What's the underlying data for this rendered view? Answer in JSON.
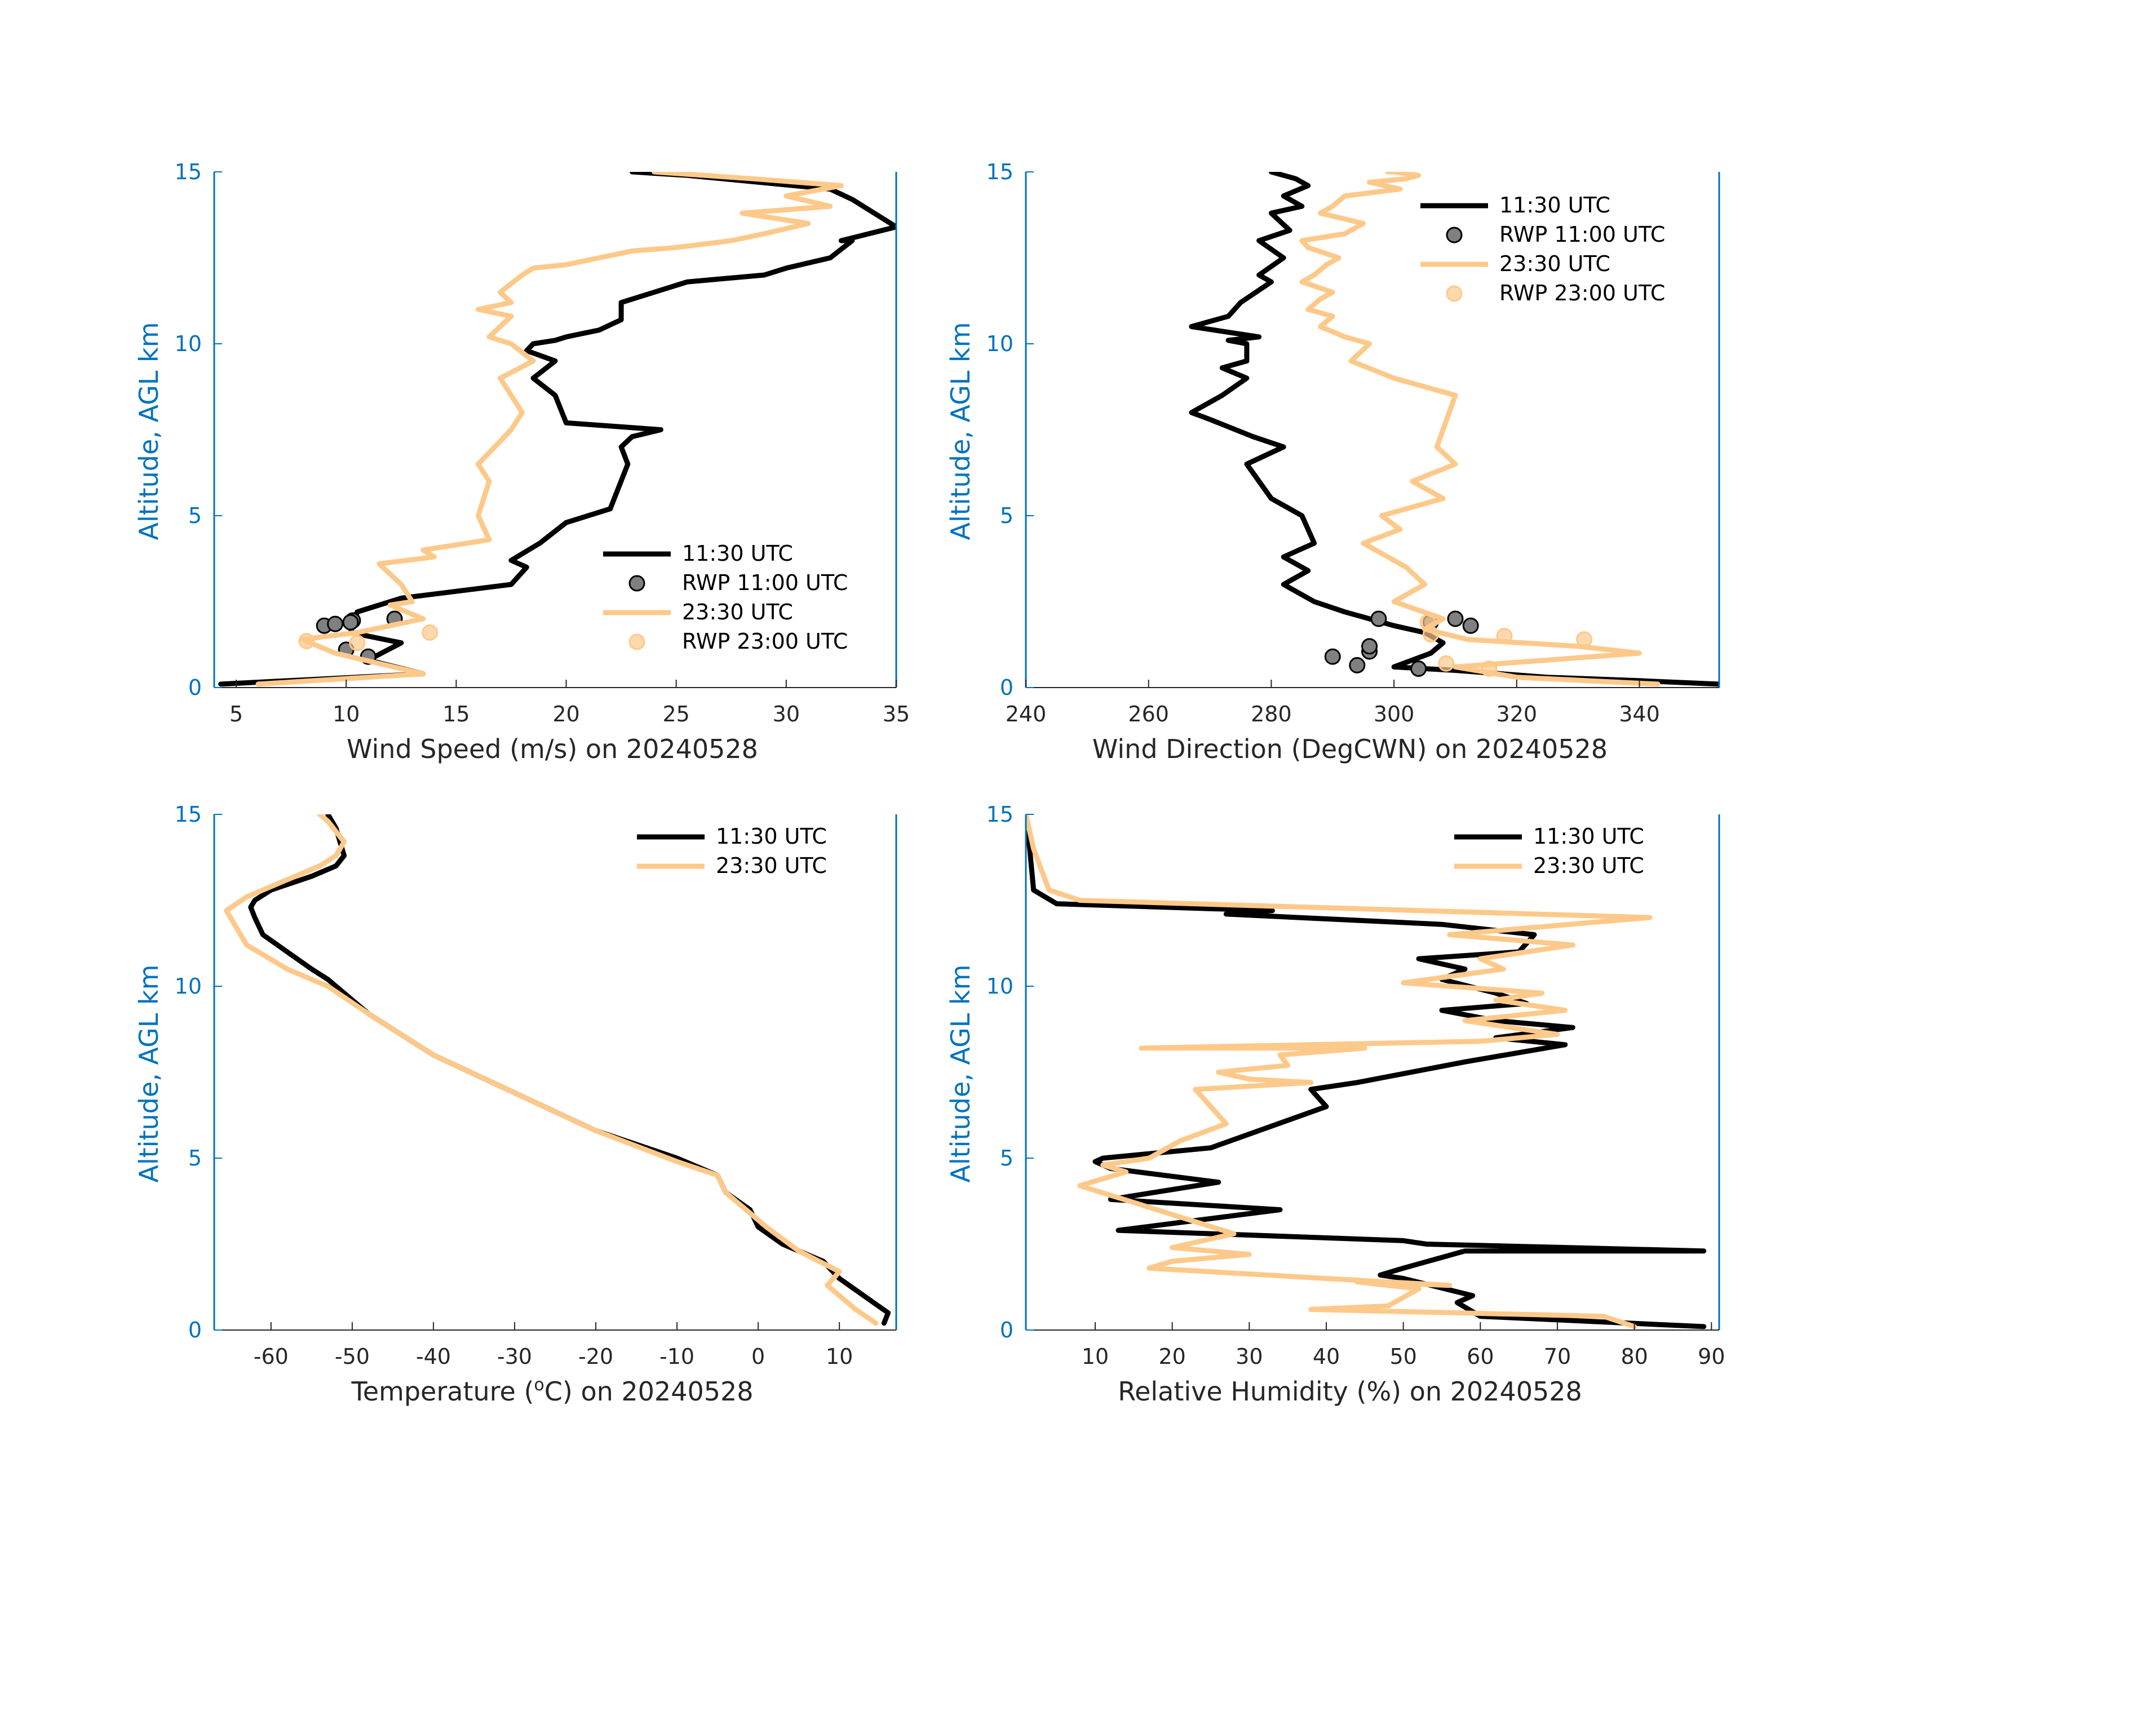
{
  "colors": {
    "series_1130": "#000000",
    "series_2330": "#FDC98A",
    "axis": "#0072BD",
    "tick_text": "#262626"
  },
  "chart_data": [
    {
      "id": "wind-speed",
      "type": "line",
      "xlabel": "Wind Speed (m/s) on 20240528",
      "ylabel": "Altitude, AGL km",
      "xlim": [
        4,
        35
      ],
      "ylim": [
        0,
        15
      ],
      "xticks": [
        5,
        10,
        15,
        20,
        25,
        30,
        35
      ],
      "xtick_labels": [
        "5",
        "10",
        "15",
        "20",
        "25",
        "30",
        "35"
      ],
      "yticks": [
        0,
        5,
        10,
        15
      ],
      "ytick_labels": [
        "0",
        "5",
        "10",
        "15"
      ],
      "legend_position": "lower-right",
      "legend": [
        "11:30 UTC",
        "RWP 11:00 UTC",
        "23:30 UTC",
        "RWP 23:00 UTC"
      ],
      "series": [
        {
          "name": "11:30 UTC",
          "kind": "line",
          "x": [
            4.3,
            13.5,
            11,
            12.5,
            10.2,
            10.5,
            12.5,
            17.5,
            18.2,
            17.5,
            18.8,
            20,
            22,
            22.8,
            22.5,
            23,
            24.3,
            20,
            19.5,
            18.5,
            19.5,
            18.2,
            18.5,
            19.5,
            20,
            21.5,
            22.5,
            22.5,
            24,
            25.5,
            29,
            30,
            32,
            33,
            32.5,
            35,
            34,
            33,
            32,
            25.5,
            23
          ],
          "y": [
            0.1,
            0.4,
            0.8,
            1.3,
            1.6,
            2.2,
            2.6,
            3,
            3.5,
            3.7,
            4.2,
            4.8,
            5.2,
            6.5,
            7,
            7.3,
            7.5,
            7.7,
            8.5,
            9,
            9.5,
            9.8,
            10,
            10.1,
            10.2,
            10.4,
            10.7,
            11.2,
            11.5,
            11.8,
            12,
            12.2,
            12.5,
            13,
            13,
            13.4,
            13.8,
            14.2,
            14.5,
            14.9,
            15
          ]
        },
        {
          "name": "RWP 11:00 UTC",
          "kind": "points",
          "x": [
            9,
            9.5,
            10.3,
            10.2,
            10,
            11,
            12.2
          ],
          "y": [
            1.8,
            1.85,
            1.95,
            1.9,
            1.1,
            0.9,
            2.0
          ]
        },
        {
          "name": "23:30 UTC",
          "kind": "line",
          "x": [
            6,
            13.5,
            9.5,
            8,
            10.5,
            13.5,
            12,
            13,
            12.5,
            11.5,
            14,
            13.5,
            16.5,
            16,
            16.5,
            16,
            17.5,
            18,
            17.5,
            17,
            18.5,
            17.5,
            16.5,
            17.5,
            16,
            17.5,
            17,
            18,
            18.5,
            20,
            21.5,
            23,
            25,
            27.5,
            29,
            31,
            28,
            32,
            30,
            32.5,
            28.5,
            24
          ],
          "y": [
            0.1,
            0.4,
            1.0,
            1.4,
            1.6,
            2.0,
            2.4,
            2.5,
            3.0,
            3.6,
            3.8,
            4.0,
            4.3,
            5.0,
            6.0,
            6.5,
            7.5,
            8.0,
            8.5,
            9.0,
            9.5,
            10.0,
            10.2,
            10.8,
            11.0,
            11.2,
            11.5,
            12.0,
            12.2,
            12.3,
            12.5,
            12.7,
            12.8,
            13.0,
            13.2,
            13.5,
            13.8,
            14.0,
            14.3,
            14.6,
            14.8,
            15.0
          ]
        },
        {
          "name": "RWP 23:00 UTC",
          "kind": "points",
          "x": [
            8.2,
            13.8,
            10.5
          ],
          "y": [
            1.35,
            1.6,
            1.3
          ]
        }
      ]
    },
    {
      "id": "wind-direction",
      "type": "line",
      "xlabel": "Wind Direction (DegCWN) on 20240528",
      "ylabel": "Altitude, AGL km",
      "xlim": [
        240,
        353
      ],
      "ylim": [
        0,
        15
      ],
      "xticks": [
        240,
        260,
        280,
        300,
        320,
        340
      ],
      "xtick_labels": [
        "240",
        "260",
        "280",
        "300",
        "320",
        "340"
      ],
      "yticks": [
        0,
        5,
        10,
        15
      ],
      "ytick_labels": [
        "0",
        "5",
        "10",
        "15"
      ],
      "legend_position": "top-right",
      "legend": [
        "11:30 UTC",
        "RWP 11:00 UTC",
        "23:30 UTC",
        "RWP 23:00 UTC"
      ],
      "series": [
        {
          "name": "11:30 UTC",
          "kind": "line",
          "x": [
            353,
            340,
            325,
            310,
            300,
            306,
            308,
            305,
            300,
            296,
            292,
            287,
            282,
            286,
            282,
            287,
            285,
            280,
            276,
            282,
            277,
            270,
            267,
            272,
            276,
            272,
            276,
            276,
            273,
            278,
            267,
            273,
            275,
            280,
            278,
            282,
            278,
            283,
            280,
            285,
            282,
            286,
            284,
            280
          ],
          "y": [
            0.1,
            0.2,
            0.3,
            0.5,
            0.6,
            1.0,
            1.3,
            1.6,
            1.8,
            2.0,
            2.2,
            2.5,
            3.0,
            3.4,
            3.8,
            4.2,
            5.0,
            5.5,
            6.5,
            7.0,
            7.3,
            7.8,
            8.0,
            8.5,
            9.0,
            9.3,
            9.5,
            10.0,
            10.1,
            10.2,
            10.5,
            10.8,
            11.2,
            11.8,
            12.0,
            12.5,
            13.0,
            13.3,
            13.8,
            14.0,
            14.3,
            14.6,
            14.8,
            15.0
          ]
        },
        {
          "name": "RWP 11:00 UTC",
          "kind": "points",
          "x": [
            290,
            294,
            296,
            296,
            297.5,
            304,
            306,
            310,
            312.5
          ],
          "y": [
            0.9,
            0.65,
            1.05,
            1.2,
            2.0,
            0.55,
            1.9,
            2.0,
            1.8
          ]
        },
        {
          "name": "23:30 UTC",
          "kind": "line",
          "x": [
            343,
            320,
            310,
            325,
            340,
            330,
            312,
            305,
            308,
            300,
            305,
            302,
            295,
            301,
            298,
            308,
            303,
            310,
            307,
            310,
            300,
            293,
            296,
            292,
            288,
            290,
            286,
            288,
            290,
            285,
            287,
            289,
            291,
            286,
            285,
            292,
            295,
            288,
            290,
            292,
            301,
            296,
            302,
            304,
            300,
            299
          ],
          "y": [
            0.1,
            0.3,
            0.6,
            0.8,
            1.0,
            1.2,
            1.4,
            1.7,
            2.0,
            2.5,
            3.0,
            3.5,
            4.2,
            4.6,
            5.0,
            5.5,
            6.0,
            6.5,
            7.0,
            8.5,
            9.0,
            9.5,
            10.0,
            10.2,
            10.5,
            10.8,
            11.0,
            11.3,
            11.5,
            11.8,
            12.0,
            12.3,
            12.5,
            12.8,
            13.0,
            13.2,
            13.5,
            13.8,
            14.0,
            14.3,
            14.5,
            14.7,
            14.8,
            14.9,
            15.0,
            15.0
          ]
        },
        {
          "name": "RWP 23:00 UTC",
          "kind": "points",
          "x": [
            308.5,
            315.5,
            331,
            318,
            306,
            305.5
          ],
          "y": [
            0.7,
            0.55,
            1.4,
            1.5,
            1.55,
            1.9
          ]
        }
      ]
    },
    {
      "id": "temperature",
      "type": "line",
      "xlabel_prefix": "Temperature (",
      "xlabel_sup": "o",
      "xlabel_suffix": "C) on 20240528",
      "ylabel": "Altitude, AGL km",
      "xlim": [
        -67,
        17
      ],
      "ylim": [
        0,
        15
      ],
      "xticks": [
        -60,
        -50,
        -40,
        -30,
        -20,
        -10,
        0,
        10
      ],
      "xtick_labels": [
        "-60",
        "-50",
        "-40",
        "-30",
        "-20",
        "-10",
        "0",
        "10"
      ],
      "yticks": [
        0,
        5,
        10,
        15
      ],
      "ytick_labels": [
        "0",
        "5",
        "10",
        "15"
      ],
      "legend_position": "top-right",
      "legend": [
        "11:30 UTC",
        "23:30 UTC"
      ],
      "series": [
        {
          "name": "11:30 UTC",
          "kind": "line",
          "x": [
            15.5,
            16,
            13,
            10,
            8,
            3,
            0,
            -1,
            -4,
            -5,
            -10,
            -20,
            -30,
            -40,
            -48,
            -52,
            -53,
            -55,
            -58,
            -61,
            -62,
            -62.5,
            -62,
            -60,
            -55,
            -52,
            -51,
            -51.5,
            -52,
            -53
          ],
          "y": [
            0.2,
            0.5,
            1.0,
            1.5,
            2.0,
            2.5,
            3.0,
            3.5,
            4.0,
            4.5,
            5.0,
            5.8,
            6.9,
            8.0,
            9.2,
            10.0,
            10.2,
            10.5,
            11.0,
            11.5,
            12.0,
            12.3,
            12.5,
            12.8,
            13.2,
            13.5,
            13.8,
            14.2,
            14.6,
            15.0
          ]
        },
        {
          "name": "23:30 UTC",
          "kind": "line",
          "x": [
            14.5,
            12,
            10,
            8.5,
            10,
            5,
            1,
            -1,
            -4,
            -5,
            -10,
            -20,
            -30,
            -40,
            -48,
            -53,
            -58,
            -63,
            -65.5,
            -63,
            -60,
            -57,
            -54,
            -52,
            -51,
            -52,
            -53,
            -54
          ],
          "y": [
            0.2,
            0.6,
            1.0,
            1.3,
            1.7,
            2.3,
            3.0,
            3.4,
            4.0,
            4.5,
            4.9,
            5.8,
            6.9,
            8.0,
            9.2,
            10.0,
            10.5,
            11.2,
            12.2,
            12.6,
            12.9,
            13.2,
            13.5,
            13.8,
            14.2,
            14.5,
            14.8,
            15.0
          ]
        }
      ]
    },
    {
      "id": "relative-humidity",
      "type": "line",
      "xlabel": "Relative Humidity (%) on 20240528",
      "ylabel": "Altitude, AGL km",
      "xlim": [
        1,
        91
      ],
      "ylim": [
        0,
        15
      ],
      "xticks": [
        10,
        20,
        30,
        40,
        50,
        60,
        70,
        80,
        90
      ],
      "xtick_labels": [
        "10",
        "20",
        "30",
        "40",
        "50",
        "60",
        "70",
        "80",
        "90"
      ],
      "yticks": [
        0,
        5,
        10,
        15
      ],
      "ytick_labels": [
        "0",
        "5",
        "10",
        "15"
      ],
      "legend_position": "top-right",
      "legend": [
        "11:30 UTC",
        "23:30 UTC"
      ],
      "series": [
        {
          "name": "11:30 UTC",
          "kind": "line",
          "x": [
            89,
            60,
            57,
            59,
            50,
            47,
            50,
            58,
            89,
            53,
            50,
            13,
            34,
            12,
            26,
            12,
            10,
            11,
            25,
            40,
            38,
            44,
            58,
            71,
            62,
            72,
            62,
            55,
            66,
            62,
            55,
            58,
            52,
            65,
            67,
            55,
            27,
            33,
            5,
            2,
            1.5,
            1
          ],
          "y": [
            0.1,
            0.4,
            0.8,
            1.0,
            1.5,
            1.6,
            1.8,
            2.3,
            2.3,
            2.5,
            2.6,
            2.9,
            3.5,
            3.8,
            4.3,
            4.7,
            4.9,
            5.0,
            5.3,
            6.5,
            7.0,
            7.2,
            7.8,
            8.3,
            8.5,
            8.8,
            9.0,
            9.3,
            9.5,
            9.8,
            10.2,
            10.5,
            10.8,
            11.0,
            11.5,
            11.8,
            12.1,
            12.2,
            12.4,
            12.8,
            14.0,
            15.0
          ]
        },
        {
          "name": "23:30 UTC",
          "kind": "line",
          "x": [
            80,
            76,
            38,
            48,
            52,
            44,
            56,
            40,
            17,
            20,
            30,
            20,
            28,
            18,
            8,
            14,
            11,
            17,
            21,
            27,
            23,
            38,
            30,
            26,
            35,
            34,
            45,
            16,
            60,
            70,
            58,
            71,
            62,
            68,
            50,
            63,
            60,
            72,
            56,
            82,
            8,
            4,
            2,
            1
          ],
          "y": [
            0.1,
            0.4,
            0.6,
            0.7,
            1.2,
            1.4,
            1.3,
            1.5,
            1.8,
            2.0,
            2.2,
            2.4,
            2.8,
            3.5,
            4.2,
            4.6,
            4.8,
            5.0,
            5.5,
            6.0,
            7.0,
            7.2,
            7.3,
            7.5,
            7.7,
            8.0,
            8.2,
            8.2,
            8.4,
            8.6,
            9.0,
            9.3,
            9.6,
            9.8,
            10.1,
            10.5,
            10.8,
            11.2,
            11.5,
            12.0,
            12.5,
            12.8,
            14.0,
            15.0
          ]
        }
      ]
    }
  ]
}
